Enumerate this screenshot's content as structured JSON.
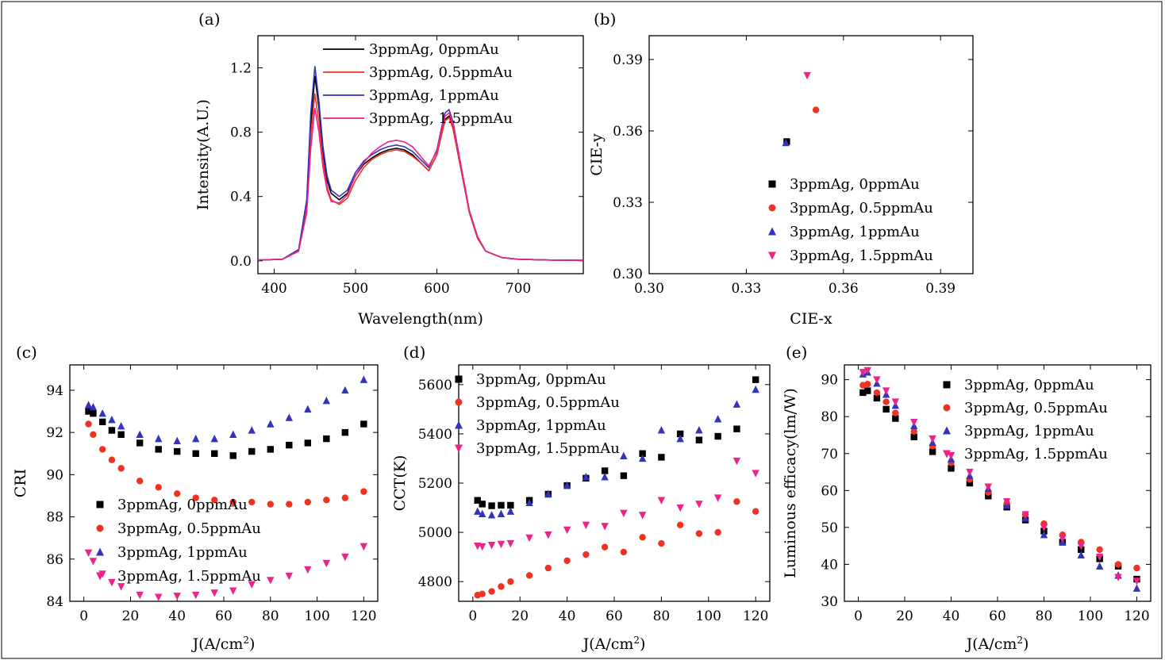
{
  "colors": {
    "s0": "#000000",
    "s1": "#ee3322",
    "s2": "#3333bb",
    "s3": "#ee2288"
  },
  "legend": [
    "3ppmAg, 0ppmAu",
    "3ppmAg, 0.5ppmAu",
    "3ppmAg, 1ppmAu",
    "3ppmAg, 1.5ppmAu"
  ],
  "chart_data": [
    {
      "panel": "(a)",
      "type": "line",
      "xlabel": "Wavelength(nm)",
      "ylabel": "Intensity(A.U.)",
      "xlim": [
        380,
        780
      ],
      "ylim": [
        -0.08,
        1.4
      ],
      "xticks": [
        400,
        500,
        600,
        700
      ],
      "yticks": [
        0.0,
        0.4,
        0.8,
        1.2
      ],
      "yticklabels": [
        "0.0",
        "0.4",
        "0.8",
        "1.2"
      ],
      "legend_position": "top",
      "x": [
        380,
        410,
        430,
        440,
        445,
        450,
        455,
        460,
        465,
        470,
        480,
        490,
        500,
        510,
        520,
        530,
        540,
        550,
        560,
        570,
        580,
        590,
        600,
        605,
        610,
        615,
        620,
        630,
        640,
        650,
        660,
        680,
        700,
        740,
        780
      ],
      "series": [
        {
          "values": [
            0.005,
            0.01,
            0.06,
            0.35,
            0.85,
            1.15,
            0.95,
            0.68,
            0.5,
            0.42,
            0.38,
            0.42,
            0.53,
            0.6,
            0.64,
            0.67,
            0.69,
            0.7,
            0.69,
            0.66,
            0.61,
            0.56,
            0.66,
            0.77,
            0.88,
            0.9,
            0.82,
            0.56,
            0.3,
            0.14,
            0.06,
            0.02,
            0.01,
            0.005,
            0.003
          ]
        },
        {
          "values": [
            0.005,
            0.01,
            0.06,
            0.33,
            0.78,
            1.04,
            0.86,
            0.62,
            0.46,
            0.38,
            0.35,
            0.39,
            0.5,
            0.58,
            0.63,
            0.66,
            0.68,
            0.69,
            0.68,
            0.65,
            0.61,
            0.56,
            0.66,
            0.77,
            0.87,
            0.89,
            0.82,
            0.56,
            0.3,
            0.14,
            0.06,
            0.02,
            0.01,
            0.005,
            0.003
          ]
        },
        {
          "values": [
            0.005,
            0.01,
            0.07,
            0.38,
            0.92,
            1.21,
            0.99,
            0.71,
            0.53,
            0.44,
            0.4,
            0.44,
            0.55,
            0.62,
            0.66,
            0.69,
            0.71,
            0.72,
            0.71,
            0.68,
            0.63,
            0.58,
            0.69,
            0.81,
            0.92,
            0.94,
            0.86,
            0.58,
            0.31,
            0.15,
            0.06,
            0.02,
            0.01,
            0.005,
            0.003
          ]
        },
        {
          "values": [
            0.005,
            0.01,
            0.06,
            0.3,
            0.7,
            0.95,
            0.8,
            0.58,
            0.44,
            0.37,
            0.36,
            0.41,
            0.53,
            0.61,
            0.67,
            0.71,
            0.74,
            0.75,
            0.74,
            0.71,
            0.65,
            0.59,
            0.68,
            0.8,
            0.9,
            0.92,
            0.85,
            0.58,
            0.31,
            0.15,
            0.06,
            0.02,
            0.01,
            0.005,
            0.003
          ]
        }
      ]
    },
    {
      "panel": "(b)",
      "type": "scatter",
      "xlabel": "CIE-x",
      "ylabel": "CIE-y",
      "xlim": [
        0.3,
        0.4
      ],
      "ylim": [
        0.3,
        0.4
      ],
      "xticks": [
        0.3,
        0.33,
        0.36,
        0.39
      ],
      "yticks": [
        0.3,
        0.33,
        0.36,
        0.39
      ],
      "xticklabels": [
        "0.30",
        "0.33",
        "0.36",
        "0.39"
      ],
      "yticklabels": [
        "0.30",
        "0.33",
        "0.36",
        "0.39"
      ],
      "legend_position": "bottom-right",
      "series": [
        {
          "points": [
            [
              0.3425,
              0.3555
            ]
          ]
        },
        {
          "points": [
            [
              0.3515,
              0.3688
            ]
          ]
        },
        {
          "points": [
            [
              0.3422,
              0.355
            ]
          ]
        },
        {
          "points": [
            [
              0.3488,
              0.3833
            ]
          ]
        }
      ]
    },
    {
      "panel": "(c)",
      "type": "scatter",
      "xlabel": "J(A/cm",
      "xlabel_sup": "2",
      "xlabel_end": ")",
      "ylabel": "CRI",
      "xlim": [
        -6,
        126
      ],
      "ylim": [
        84,
        95.2
      ],
      "xticks": [
        0,
        20,
        40,
        60,
        80,
        100,
        120
      ],
      "yticks": [
        84,
        86,
        88,
        90,
        92,
        94
      ],
      "legend_position": "bottom-left",
      "x": [
        2,
        4,
        8,
        12,
        16,
        24,
        32,
        40,
        48,
        56,
        64,
        72,
        80,
        88,
        96,
        104,
        112,
        120
      ],
      "series": [
        {
          "values": [
            93.0,
            92.9,
            92.5,
            92.1,
            91.9,
            91.5,
            91.2,
            91.1,
            91.0,
            91.0,
            90.9,
            91.1,
            91.2,
            91.4,
            91.5,
            91.7,
            92.0,
            92.4
          ]
        },
        {
          "values": [
            92.4,
            91.9,
            91.2,
            90.7,
            90.3,
            89.7,
            89.4,
            89.1,
            88.9,
            88.8,
            88.7,
            88.7,
            88.6,
            88.6,
            88.7,
            88.8,
            88.9,
            89.2
          ]
        },
        {
          "values": [
            93.3,
            93.2,
            92.9,
            92.6,
            92.3,
            91.9,
            91.7,
            91.6,
            91.7,
            91.7,
            91.9,
            92.1,
            92.4,
            92.7,
            93.1,
            93.5,
            94.0,
            94.5
          ]
        },
        {
          "values": [
            86.3,
            85.9,
            85.3,
            84.9,
            84.7,
            84.3,
            84.2,
            84.25,
            84.3,
            84.4,
            84.5,
            84.8,
            85.0,
            85.2,
            85.5,
            85.8,
            86.1,
            86.6
          ]
        }
      ]
    },
    {
      "panel": "(d)",
      "type": "scatter",
      "xlabel": "J(A/cm",
      "xlabel_sup": "2",
      "xlabel_end": ")",
      "ylabel": "CCT(K)",
      "xlim": [
        -6,
        126
      ],
      "ylim": [
        4720,
        5680
      ],
      "xticks": [
        0,
        20,
        40,
        60,
        80,
        100,
        120
      ],
      "yticks": [
        4800,
        5000,
        5200,
        5400,
        5600
      ],
      "legend_position": "top-left",
      "x": [
        2,
        4,
        8,
        12,
        16,
        24,
        32,
        40,
        48,
        56,
        64,
        72,
        80,
        88,
        96,
        104,
        112,
        120
      ],
      "series": [
        {
          "values": [
            5130,
            5115,
            5108,
            5110,
            5110,
            5130,
            5155,
            5190,
            5220,
            5250,
            5230,
            5320,
            5305,
            5400,
            5375,
            5390,
            5420,
            5620
          ]
        },
        {
          "values": [
            4745,
            4750,
            4760,
            4780,
            4800,
            4825,
            4855,
            4885,
            4910,
            4940,
            4920,
            4980,
            4955,
            5030,
            4995,
            5000,
            5125,
            5085
          ]
        },
        {
          "values": [
            5085,
            5075,
            5070,
            5075,
            5085,
            5120,
            5155,
            5190,
            5225,
            5225,
            5310,
            5300,
            5415,
            5380,
            5415,
            5460,
            5520,
            5580
          ]
        },
        {
          "values": [
            4945,
            4942,
            4948,
            4952,
            4955,
            4978,
            4990,
            5010,
            5030,
            5025,
            5078,
            5070,
            5130,
            5100,
            5115,
            5140,
            5290,
            5240
          ]
        }
      ]
    },
    {
      "panel": "(e)",
      "type": "scatter",
      "xlabel": "J(A/cm",
      "xlabel_sup": "2",
      "xlabel_end": ")",
      "ylabel": "Luminous efficacy(lm/W)",
      "xlim": [
        -6,
        126
      ],
      "ylim": [
        30,
        94
      ],
      "xticks": [
        0,
        20,
        40,
        60,
        80,
        100,
        120
      ],
      "yticks": [
        30,
        40,
        50,
        60,
        70,
        80,
        90
      ],
      "legend_position": "top-right",
      "x": [
        2,
        4,
        8,
        12,
        16,
        24,
        32,
        40,
        48,
        56,
        64,
        72,
        80,
        88,
        96,
        104,
        112,
        120
      ],
      "series": [
        {
          "values": [
            86.5,
            87.0,
            85.0,
            82.0,
            79.5,
            74.5,
            70.5,
            66.0,
            62.0,
            58.5,
            55.5,
            52.0,
            49.0,
            46.0,
            44.0,
            41.5,
            39.5,
            36.0
          ]
        },
        {
          "values": [
            88.5,
            88.8,
            86.5,
            84.0,
            81.0,
            76.0,
            72.0,
            67.5,
            63.0,
            59.5,
            56.5,
            53.5,
            51.0,
            48.0,
            46.0,
            44.0,
            40.0,
            39.0
          ]
        },
        {
          "values": [
            91.5,
            92.0,
            89.0,
            86.0,
            83.0,
            77.5,
            73.0,
            68.5,
            64.0,
            60.5,
            56.0,
            52.5,
            48.0,
            46.0,
            42.5,
            39.5,
            37.0,
            33.5
          ]
        },
        {
          "values": [
            92.0,
            92.5,
            90.0,
            87.0,
            84.0,
            78.5,
            74.0,
            69.5,
            65.0,
            61.0,
            57.0,
            53.5,
            50.0,
            47.0,
            45.0,
            42.0,
            36.5,
            35.5
          ]
        }
      ]
    }
  ]
}
